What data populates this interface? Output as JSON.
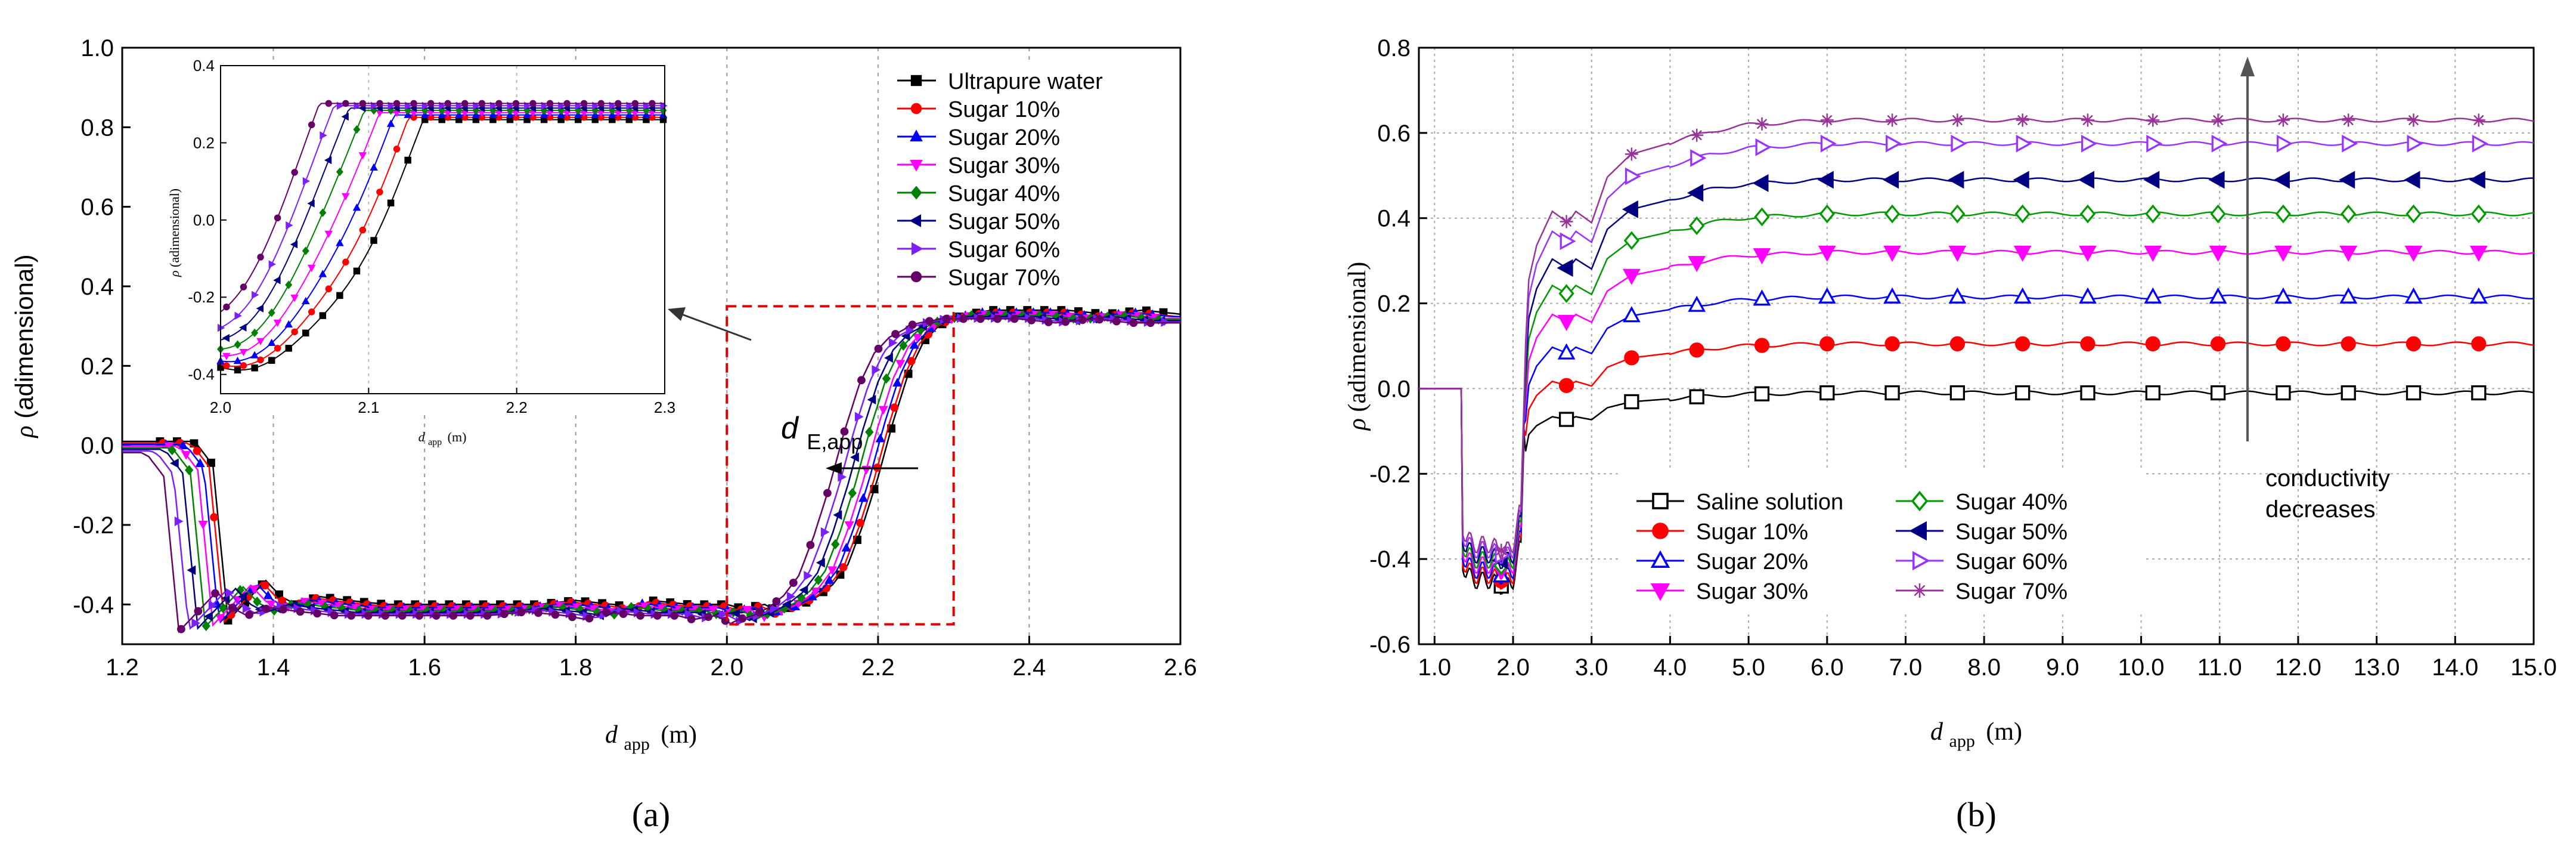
{
  "figure": {
    "caption_a": "(a)",
    "caption_b": "(b)"
  },
  "chart_data": [
    {
      "id": "a",
      "type": "line",
      "ylabel_symbol": "ρ",
      "ylabel": "(adimensional)",
      "xlabel_symbol": "d",
      "xlabel_sub": "app",
      "xlabel_unit": "(m)",
      "xlim": [
        1.2,
        2.6
      ],
      "ylim": [
        -0.5,
        1.0
      ],
      "xticks": [
        "1.2",
        "1.4",
        "1.6",
        "1.8",
        "2.0",
        "2.2",
        "2.4",
        "2.6"
      ],
      "yticks": [
        "-0.4",
        "-0.2",
        "0.0",
        "0.2",
        "0.4",
        "0.6",
        "0.8",
        "1.0"
      ],
      "grid_x": [
        1.4,
        1.6,
        1.8,
        2.0,
        2.2,
        2.4
      ],
      "annotation": "d",
      "annotation_sub": "E,app",
      "zoom_box": {
        "x": [
          2.0,
          2.3
        ],
        "y": [
          -0.45,
          0.35
        ]
      },
      "x": [
        1.2,
        1.25,
        1.29,
        1.3,
        1.32,
        1.34,
        1.36,
        1.38,
        1.39,
        1.41,
        1.43,
        1.46,
        1.5,
        1.55,
        1.6,
        1.65,
        1.7,
        1.75,
        1.8,
        1.85,
        1.88,
        1.9,
        1.95,
        2.0,
        2.02,
        2.05,
        2.07,
        2.08,
        2.1,
        2.12,
        2.14,
        2.16,
        2.18,
        2.2,
        2.22,
        2.24,
        2.26,
        2.28,
        2.3,
        2.32,
        2.35,
        2.4,
        2.45,
        2.5,
        2.55,
        2.6
      ],
      "series": [
        {
          "name": "Ultrapure water",
          "color": "#000000",
          "marker": "square",
          "shift": 0.0,
          "sat": 0.845
        },
        {
          "name": "Sugar 10%",
          "color": "#ff0000",
          "marker": "circle",
          "shift": 0.005,
          "sat": 0.83
        },
        {
          "name": "Sugar 20%",
          "color": "#0000ff",
          "marker": "triangle-up",
          "shift": 0.012,
          "sat": 0.86
        },
        {
          "name": "Sugar 30%",
          "color": "#ff00ff",
          "marker": "triangle-down",
          "shift": 0.02,
          "sat": 0.855
        },
        {
          "name": "Sugar 40%",
          "color": "#008000",
          "marker": "diamond",
          "shift": 0.03,
          "sat": 0.865
        },
        {
          "name": "Sugar 50%",
          "color": "#000080",
          "marker": "triangle-left",
          "shift": 0.04,
          "sat": 0.87
        },
        {
          "name": "Sugar 60%",
          "color": "#7b1fff",
          "marker": "triangle-right",
          "shift": 0.052,
          "sat": 0.875
        },
        {
          "name": "Sugar 70%",
          "color": "#660066",
          "marker": "circle",
          "shift": 0.065,
          "sat": 0.89
        }
      ],
      "base_curve": [
        0.01,
        0.01,
        0.01,
        0.0,
        -0.05,
        -0.44,
        -0.4,
        -0.36,
        -0.34,
        -0.38,
        -0.4,
        -0.38,
        -0.39,
        -0.4,
        -0.4,
        -0.4,
        -0.4,
        -0.4,
        -0.39,
        -0.4,
        -0.41,
        -0.39,
        -0.4,
        -0.4,
        -0.41,
        -0.4,
        -0.42,
        -0.41,
        -0.4,
        -0.38,
        -0.35,
        -0.3,
        -0.2,
        -0.08,
        0.06,
        0.18,
        0.26,
        0.3,
        0.32,
        0.33,
        0.34,
        0.34,
        0.34,
        0.33,
        0.34,
        0.33
      ]
    },
    {
      "id": "a-inset",
      "type": "line",
      "ylabel_symbol": "ρ",
      "ylabel": "(adimensional)",
      "xlabel_symbol": "d",
      "xlabel_sub": "app",
      "xlabel_unit": "(m)",
      "xlim": [
        2.0,
        2.3
      ],
      "ylim": [
        -0.45,
        0.4
      ],
      "xticks": [
        "2.0",
        "2.1",
        "2.2",
        "2.3"
      ],
      "yticks": [
        "-0.4",
        "-0.2",
        "0.0",
        "0.2",
        "0.4"
      ]
    },
    {
      "id": "b",
      "type": "line",
      "ylabel_symbol": "ρ",
      "ylabel": "(adimensional)",
      "xlabel_symbol": "d",
      "xlabel_sub": "app",
      "xlabel_unit": "(m)",
      "xlim": [
        0.8,
        15.0
      ],
      "ylim": [
        -0.6,
        0.8
      ],
      "xticks": [
        "1.0",
        "2.0",
        "3.0",
        "4.0",
        "5.0",
        "6.0",
        "7.0",
        "8.0",
        "9.0",
        "10.0",
        "11.0",
        "12.0",
        "13.0",
        "14.0",
        "15.0"
      ],
      "yticks": [
        "-0.6",
        "-0.4",
        "-0.2",
        "0.0",
        "0.2",
        "0.4",
        "0.6",
        "0.8"
      ],
      "annotation": "conductivity\ndecreases",
      "series": [
        {
          "name": "Saline solution",
          "color": "#000000",
          "marker": "open-square",
          "plateau": -0.01
        },
        {
          "name": "Sugar 10%",
          "color": "#ff0000",
          "marker": "filled-circle",
          "plateau": 0.105
        },
        {
          "name": "Sugar 20%",
          "color": "#0000ff",
          "marker": "open-triangle-up",
          "plateau": 0.215
        },
        {
          "name": "Sugar 30%",
          "color": "#ff00ff",
          "marker": "filled-triangle-down",
          "plateau": 0.32
        },
        {
          "name": "Sugar 40%",
          "color": "#009900",
          "marker": "open-diamond",
          "plateau": 0.41
        },
        {
          "name": "Sugar 50%",
          "color": "#000080",
          "marker": "filled-triangle-left",
          "plateau": 0.49
        },
        {
          "name": "Sugar 60%",
          "color": "#9933ff",
          "marker": "open-triangle-right",
          "plateau": 0.575
        },
        {
          "name": "Sugar 70%",
          "color": "#993399",
          "marker": "star",
          "plateau": 0.63
        }
      ],
      "shape_x": [
        0.8,
        1.3,
        1.35,
        1.4,
        1.5,
        1.7,
        1.9,
        2.0,
        2.1,
        2.2,
        2.3,
        2.5,
        2.7,
        2.8,
        3.0,
        3.2,
        3.5,
        4.0,
        4.5,
        5.0,
        6.0,
        8.0,
        10.0,
        12.0,
        15.0
      ],
      "shape_frac": [
        0.0,
        0.0,
        -0.45,
        -0.48,
        -0.5,
        -0.5,
        -0.52,
        -0.5,
        -0.4,
        0.3,
        0.45,
        0.6,
        0.55,
        0.6,
        0.55,
        0.75,
        0.85,
        0.9,
        0.95,
        0.98,
        1.0,
        1.0,
        1.0,
        1.0,
        1.0
      ]
    }
  ]
}
